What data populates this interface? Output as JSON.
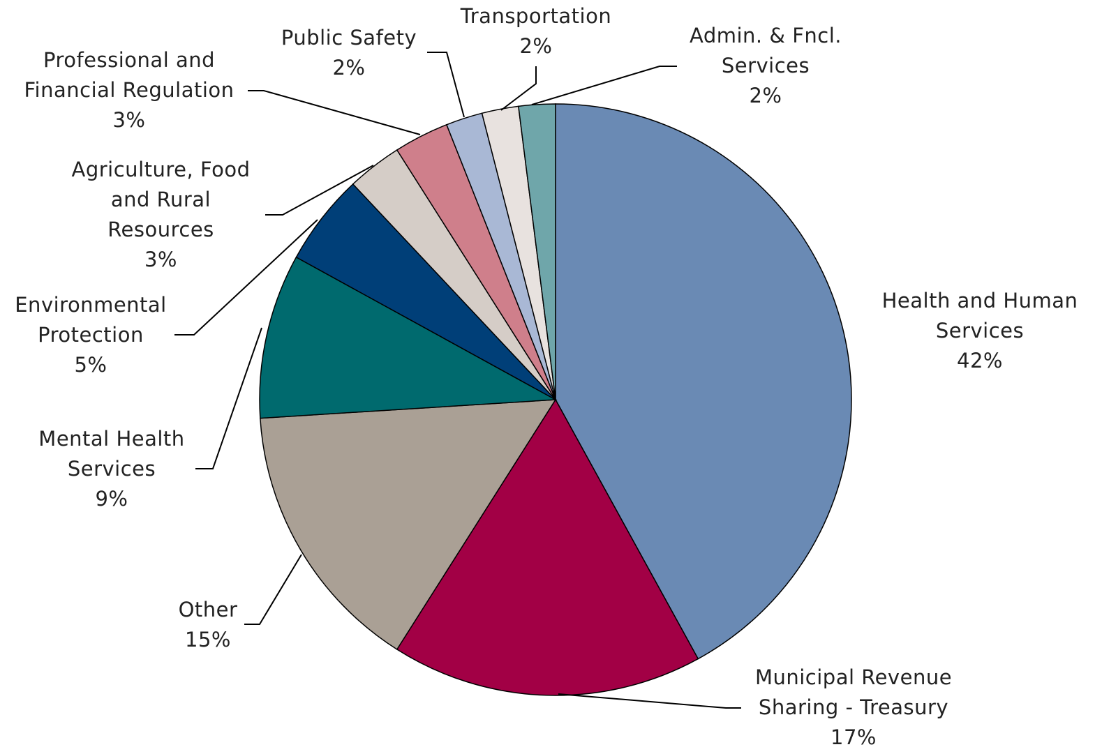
{
  "chart_data": {
    "type": "pie",
    "categories": [
      "Health and Human Services",
      "Municipal Revenue Sharing - Treasury",
      "Other",
      "Mental Health Services",
      "Environmental Protection",
      "Agriculture, Food and Rural Resources",
      "Professional and Financial Regulation",
      "Public Safety",
      "Transportation",
      "Admin. & Fncl. Services"
    ],
    "values": [
      42,
      17,
      15,
      9,
      5,
      3,
      3,
      2,
      2,
      2
    ],
    "value_labels": [
      "42%",
      "17%",
      "15%",
      "9%",
      "5%",
      "3%",
      "3%",
      "2%",
      "2%",
      "2%"
    ],
    "colors": [
      "#6a8ab4",
      "#a20045",
      "#aaa095",
      "#006a6e",
      "#003f78",
      "#d5cdc7",
      "#cf7f8b",
      "#a9b8d5",
      "#e8e2df",
      "#6fa6aa"
    ]
  }
}
